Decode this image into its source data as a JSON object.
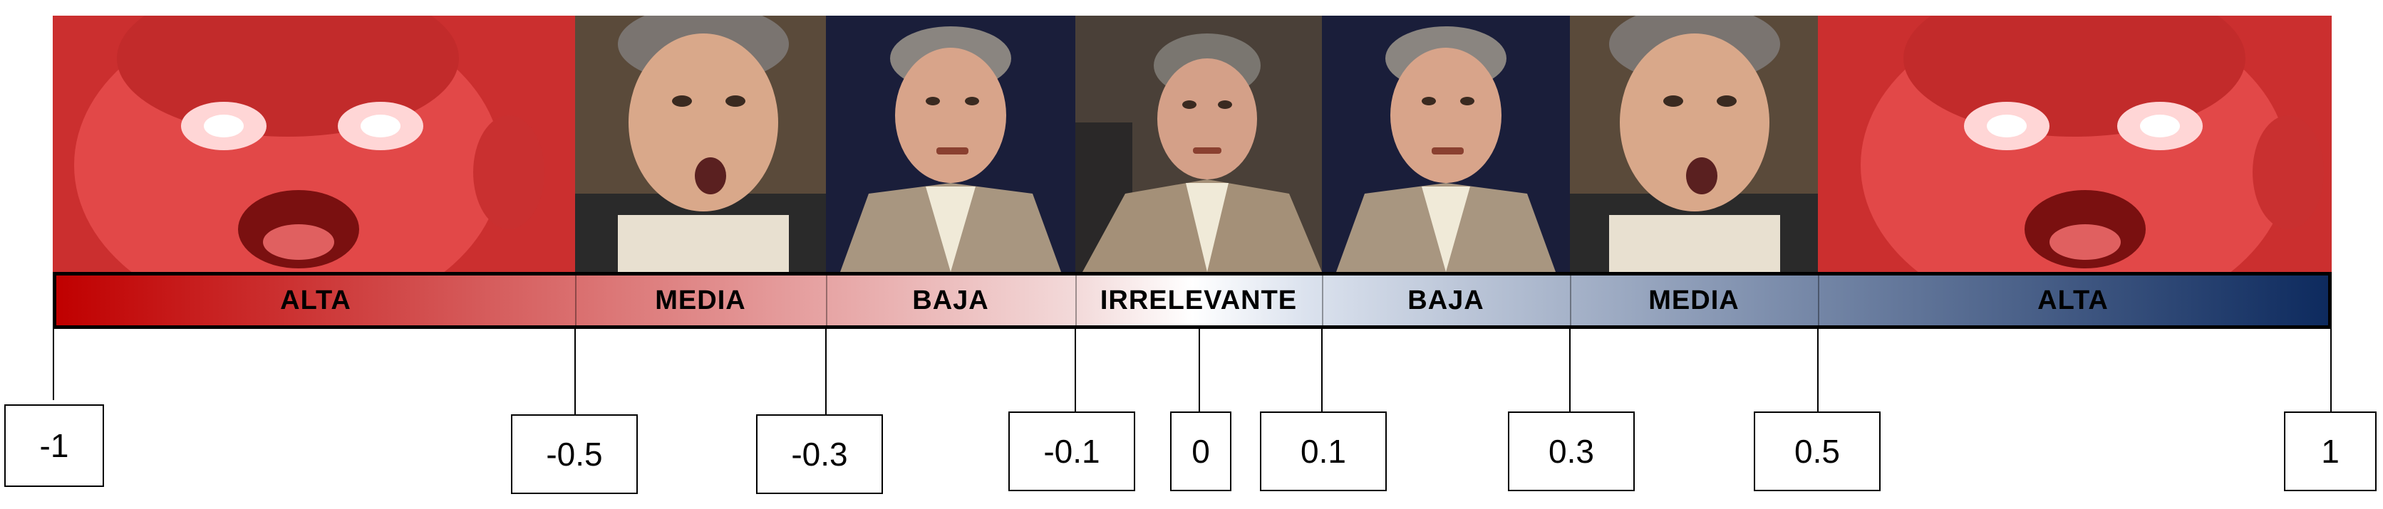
{
  "segments": [
    "ALTA",
    "MEDIA",
    "BAJA",
    "IRRELEVANTE",
    "BAJA",
    "MEDIA",
    "ALTA"
  ],
  "scale_values": [
    "-1",
    "-0.5",
    "-0.3",
    "-0.1",
    "0",
    "0.1",
    "0.3",
    "0.5",
    "1"
  ]
}
